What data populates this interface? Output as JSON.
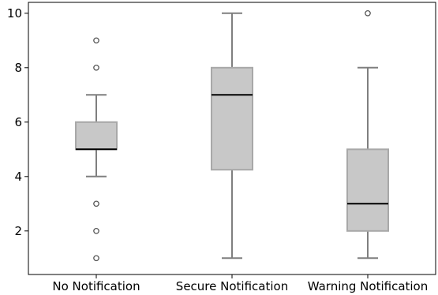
{
  "chart_data": {
    "type": "box",
    "title": "",
    "xlabel": "",
    "ylabel": "",
    "categories": [
      "No Notification",
      "Secure Notification",
      "Warning Notification"
    ],
    "yticks": [
      2,
      4,
      6,
      8,
      10
    ],
    "ylim": [
      0.4,
      10.4
    ],
    "grid": false,
    "boxes": [
      {
        "category": "No Notification",
        "whisker_low": 4,
        "q1": 5,
        "median": 5,
        "q3": 6,
        "whisker_high": 7,
        "outliers": [
          9,
          8,
          3,
          2,
          1
        ]
      },
      {
        "category": "Secure Notification",
        "whisker_low": 1,
        "q1": 4.25,
        "median": 7,
        "q3": 8,
        "whisker_high": 10,
        "outliers": []
      },
      {
        "category": "Warning Notification",
        "whisker_low": 1,
        "q1": 2,
        "median": 3,
        "q3": 5,
        "whisker_high": 8,
        "outliers": [
          10
        ]
      }
    ],
    "colors": {
      "box_fill": "#c8c8c8",
      "box_edge": "#a8a8a8",
      "whisker": "#7f7f7f",
      "median": "#000000",
      "outlier_edge": "#555555",
      "axis": "#000000"
    }
  }
}
